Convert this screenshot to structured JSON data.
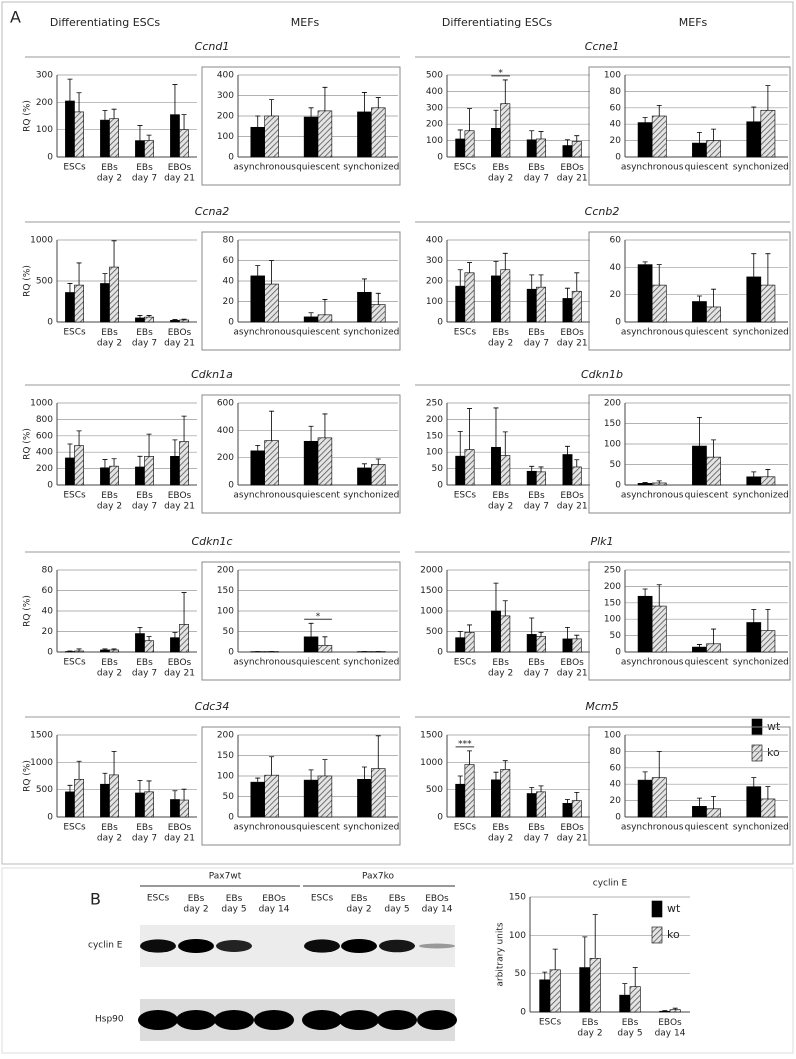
{
  "panel_a": {
    "label": "A",
    "column_headers": [
      "Differentiating ESCs",
      "MEFs",
      "Differentiating ESCs",
      "MEFs"
    ],
    "genes": [
      "Ccnd1",
      "Ccne1",
      "Ccna2",
      "Ccnb2",
      "Cdkn1a",
      "Cdkn1b",
      "Cdkn1c",
      "Plk1",
      "Cdc34",
      "Mcm5"
    ]
  },
  "panel_b": {
    "label": "B",
    "groups": [
      "Pax7wt",
      "Pax7ko"
    ],
    "lanes": [
      "ESCs",
      "EBs\nday 2",
      "EBs\nday 5",
      "EBOs\nday 14",
      "ESCs",
      "EBs\nday 2",
      "EBs\nday 5",
      "EBOs\nday 14"
    ],
    "rows": [
      "cyclin E",
      "Hsp90"
    ]
  },
  "chart_data": [
    {
      "type": "bar",
      "ylabel": "RQ (%)",
      "categories": [
        "ESCs",
        "EBs\nday 2",
        "EBs\nday 7",
        "EBOs\nday 21"
      ],
      "ylim": [
        0,
        300
      ],
      "yticks": [
        0,
        100,
        200,
        300
      ],
      "grid": true,
      "series": [
        {
          "color": "#000000",
          "values": [
            205,
            135,
            60,
            155
          ],
          "errors": [
            80,
            35,
            55,
            110
          ]
        },
        {
          "color": "#555555",
          "hatch": true,
          "values": [
            165,
            140,
            60,
            100
          ],
          "errors": [
            70,
            35,
            20,
            55
          ]
        }
      ]
    },
    {
      "type": "bar",
      "frame": true,
      "categories": [
        "asynchronous",
        "quiescent",
        "synchonized"
      ],
      "ylim": [
        0,
        400
      ],
      "yticks": [
        0,
        100,
        200,
        300,
        400
      ],
      "grid": true,
      "series": [
        {
          "color": "#000000",
          "values": [
            145,
            195,
            220
          ],
          "errors": [
            55,
            45,
            95
          ]
        },
        {
          "color": "#555555",
          "hatch": true,
          "values": [
            200,
            225,
            240
          ],
          "errors": [
            80,
            115,
            50
          ]
        }
      ]
    },
    {
      "type": "bar",
      "categories": [
        "ESCs",
        "EBs\nday 2",
        "EBs\nday 7",
        "EBOs\nday 21"
      ],
      "ylim": [
        0,
        500
      ],
      "yticks": [
        0,
        100,
        200,
        300,
        400,
        500
      ],
      "grid": true,
      "annotations": [
        {
          "text": "*",
          "category": 1
        }
      ],
      "series": [
        {
          "color": "#000000",
          "values": [
            110,
            175,
            105,
            70
          ],
          "errors": [
            55,
            110,
            55,
            35
          ]
        },
        {
          "color": "#555555",
          "hatch": true,
          "values": [
            160,
            325,
            110,
            95
          ],
          "errors": [
            135,
            145,
            45,
            35
          ]
        }
      ]
    },
    {
      "type": "bar",
      "frame": true,
      "categories": [
        "asynchronous",
        "quiescent",
        "synchonized"
      ],
      "ylim": [
        0,
        100
      ],
      "yticks": [
        0,
        20,
        40,
        60,
        80,
        100
      ],
      "grid": true,
      "series": [
        {
          "color": "#000000",
          "values": [
            42,
            17,
            43
          ],
          "errors": [
            6,
            13,
            18
          ]
        },
        {
          "color": "#555555",
          "hatch": true,
          "values": [
            50,
            20,
            57
          ],
          "errors": [
            13,
            14,
            30
          ]
        }
      ]
    },
    {
      "type": "bar",
      "ylabel": "RQ (%)",
      "categories": [
        "ESCs",
        "EBs\nday 2",
        "EBs\nday 7",
        "EBOs\nday 21"
      ],
      "ylim": [
        0,
        1000
      ],
      "yticks": [
        0,
        500,
        1000
      ],
      "grid": true,
      "series": [
        {
          "color": "#000000",
          "values": [
            360,
            470,
            50,
            20
          ],
          "errors": [
            110,
            120,
            30,
            10
          ]
        },
        {
          "color": "#555555",
          "hatch": true,
          "values": [
            450,
            670,
            60,
            25
          ],
          "errors": [
            270,
            320,
            20,
            10
          ]
        }
      ]
    },
    {
      "type": "bar",
      "frame": true,
      "categories": [
        "asynchronous",
        "quiescent",
        "synchonized"
      ],
      "ylim": [
        0,
        80
      ],
      "yticks": [
        0,
        20,
        40,
        60,
        80
      ],
      "grid": true,
      "series": [
        {
          "color": "#000000",
          "values": [
            45,
            5,
            29
          ],
          "errors": [
            10,
            4,
            13
          ]
        },
        {
          "color": "#555555",
          "hatch": true,
          "values": [
            37,
            7,
            17
          ],
          "errors": [
            23,
            15,
            11
          ]
        }
      ]
    },
    {
      "type": "bar",
      "categories": [
        "ESCs",
        "EBs\nday 2",
        "EBs\nday 7",
        "EBOs\nday 21"
      ],
      "ylim": [
        0,
        400
      ],
      "yticks": [
        0,
        100,
        200,
        300,
        400
      ],
      "grid": true,
      "series": [
        {
          "color": "#000000",
          "values": [
            175,
            225,
            160,
            115
          ],
          "errors": [
            80,
            70,
            70,
            50
          ]
        },
        {
          "color": "#555555",
          "hatch": true,
          "values": [
            240,
            255,
            170,
            150
          ],
          "errors": [
            50,
            80,
            60,
            90
          ]
        }
      ]
    },
    {
      "type": "bar",
      "frame": true,
      "categories": [
        "asynchronous",
        "quiescent",
        "synchonized"
      ],
      "ylim": [
        0,
        60
      ],
      "yticks": [
        0,
        20,
        40,
        60
      ],
      "grid": true,
      "series": [
        {
          "color": "#000000",
          "values": [
            42,
            15,
            33
          ],
          "errors": [
            2,
            4,
            17
          ]
        },
        {
          "color": "#555555",
          "hatch": true,
          "values": [
            27,
            11,
            27
          ],
          "errors": [
            15,
            13,
            23
          ]
        }
      ]
    },
    {
      "type": "bar",
      "ylabel": "RQ (%)",
      "categories": [
        "ESCs",
        "EBs\nday 2",
        "EBs\nday 7",
        "EBOs\nday 21"
      ],
      "ylim": [
        0,
        1000
      ],
      "yticks": [
        0,
        200,
        400,
        600,
        800,
        1000
      ],
      "grid": true,
      "series": [
        {
          "color": "#000000",
          "values": [
            330,
            210,
            220,
            350
          ],
          "errors": [
            170,
            100,
            130,
            200
          ]
        },
        {
          "color": "#555555",
          "hatch": true,
          "values": [
            480,
            230,
            350,
            530
          ],
          "errors": [
            180,
            90,
            270,
            310
          ]
        }
      ]
    },
    {
      "type": "bar",
      "frame": true,
      "categories": [
        "asynchronous",
        "quiescent",
        "synchonized"
      ],
      "ylim": [
        0,
        600
      ],
      "yticks": [
        0,
        200,
        400,
        600
      ],
      "grid": true,
      "series": [
        {
          "color": "#000000",
          "values": [
            250,
            320,
            125
          ],
          "errors": [
            40,
            110,
            30
          ]
        },
        {
          "color": "#555555",
          "hatch": true,
          "values": [
            325,
            345,
            150
          ],
          "errors": [
            215,
            175,
            40
          ]
        }
      ]
    },
    {
      "type": "bar",
      "categories": [
        "ESCs",
        "EBs\nday 2",
        "EBs\nday 7",
        "EBOs\nday 21"
      ],
      "ylim": [
        0,
        250
      ],
      "yticks": [
        0,
        50,
        100,
        150,
        200,
        250
      ],
      "grid": true,
      "series": [
        {
          "color": "#000000",
          "values": [
            88,
            115,
            42,
            93
          ],
          "errors": [
            75,
            120,
            15,
            25
          ]
        },
        {
          "color": "#555555",
          "hatch": true,
          "values": [
            108,
            90,
            40,
            55
          ],
          "errors": [
            125,
            72,
            15,
            22
          ]
        }
      ]
    },
    {
      "type": "bar",
      "frame": true,
      "categories": [
        "asynchronous",
        "quiescent",
        "synchonized"
      ],
      "ylim": [
        0,
        200
      ],
      "yticks": [
        0,
        50,
        100,
        150,
        200
      ],
      "grid": true,
      "series": [
        {
          "color": "#000000",
          "values": [
            4,
            95,
            20
          ],
          "errors": [
            2,
            70,
            12
          ]
        },
        {
          "color": "#555555",
          "hatch": true,
          "values": [
            5,
            68,
            20
          ],
          "errors": [
            5,
            42,
            18
          ]
        }
      ]
    },
    {
      "type": "bar",
      "ylabel": "RQ (%)",
      "categories": [
        "ESCs",
        "EBs\nday 2",
        "EBs\nday 7",
        "EBOs\nday 21"
      ],
      "ylim": [
        0,
        80
      ],
      "yticks": [
        0,
        20,
        40,
        60,
        80
      ],
      "grid": true,
      "series": [
        {
          "color": "#000000",
          "values": [
            0.5,
            2,
            18,
            14
          ],
          "errors": [
            0.5,
            1,
            6,
            5
          ]
        },
        {
          "color": "#555555",
          "hatch": true,
          "values": [
            1,
            2,
            11,
            27
          ],
          "errors": [
            2,
            1,
            4,
            31
          ]
        }
      ]
    },
    {
      "type": "bar",
      "frame": true,
      "categories": [
        "asynchronous",
        "quiescent",
        "synchonized"
      ],
      "ylim": [
        0,
        200
      ],
      "yticks": [
        0,
        50,
        100,
        150,
        200
      ],
      "grid": true,
      "annotations": [
        {
          "text": "*",
          "category": 1
        }
      ],
      "series": [
        {
          "color": "#000000",
          "values": [
            1,
            37,
            1
          ],
          "errors": [
            0,
            33,
            0
          ]
        },
        {
          "color": "#555555",
          "hatch": true,
          "values": [
            1,
            16,
            1
          ],
          "errors": [
            0,
            21,
            0
          ]
        }
      ]
    },
    {
      "type": "bar",
      "categories": [
        "ESCs",
        "EBs\nday 2",
        "EBs\nday 7",
        "EBOs\nday 21"
      ],
      "ylim": [
        0,
        2000
      ],
      "yticks": [
        0,
        500,
        1000,
        1500,
        2000
      ],
      "grid": true,
      "series": [
        {
          "color": "#000000",
          "values": [
            350,
            1000,
            430,
            320
          ],
          "errors": [
            150,
            680,
            400,
            280
          ]
        },
        {
          "color": "#555555",
          "hatch": true,
          "values": [
            480,
            880,
            380,
            320
          ],
          "errors": [
            180,
            370,
            100,
            90
          ]
        }
      ]
    },
    {
      "type": "bar",
      "frame": true,
      "categories": [
        "asynchronous",
        "quiescent",
        "synchonized"
      ],
      "ylim": [
        0,
        250
      ],
      "yticks": [
        0,
        50,
        100,
        150,
        200,
        250
      ],
      "grid": true,
      "series": [
        {
          "color": "#000000",
          "values": [
            170,
            15,
            90
          ],
          "errors": [
            22,
            8,
            40
          ]
        },
        {
          "color": "#555555",
          "hatch": true,
          "values": [
            140,
            25,
            65
          ],
          "errors": [
            65,
            45,
            65
          ]
        }
      ]
    },
    {
      "type": "bar",
      "ylabel": "RQ (%)",
      "categories": [
        "ESCs",
        "EBs\nday 2",
        "EBs\nday 7",
        "EBOs\nday 21"
      ],
      "ylim": [
        0,
        1500
      ],
      "yticks": [
        0,
        500,
        1000,
        1500
      ],
      "grid": true,
      "series": [
        {
          "color": "#000000",
          "values": [
            460,
            600,
            440,
            320
          ],
          "errors": [
            120,
            200,
            230,
            160
          ]
        },
        {
          "color": "#555555",
          "hatch": true,
          "values": [
            690,
            770,
            460,
            310
          ],
          "errors": [
            330,
            430,
            200,
            200
          ]
        }
      ]
    },
    {
      "type": "bar",
      "frame": true,
      "categories": [
        "asynchronous",
        "quiescent",
        "synchonized"
      ],
      "ylim": [
        0,
        200
      ],
      "yticks": [
        0,
        50,
        100,
        150,
        200
      ],
      "grid": true,
      "series": [
        {
          "color": "#000000",
          "values": [
            85,
            90,
            92
          ],
          "errors": [
            10,
            25,
            30
          ]
        },
        {
          "color": "#555555",
          "hatch": true,
          "values": [
            102,
            100,
            118
          ],
          "errors": [
            45,
            40,
            80
          ]
        }
      ]
    },
    {
      "type": "bar",
      "categories": [
        "ESCs",
        "EBs\nday 2",
        "EBs\nday 7",
        "EBOs\nday 21"
      ],
      "ylim": [
        0,
        1500
      ],
      "yticks": [
        0,
        500,
        1000,
        1500
      ],
      "grid": true,
      "annotations": [
        {
          "text": "***",
          "category": 0
        }
      ],
      "legend": "far right",
      "series": [
        {
          "name": "wt",
          "color": "#000000",
          "values": [
            600,
            680,
            430,
            250
          ],
          "errors": [
            150,
            140,
            110,
            70
          ]
        },
        {
          "name": "ko",
          "color": "#555555",
          "hatch": true,
          "values": [
            960,
            870,
            460,
            300
          ],
          "errors": [
            250,
            160,
            110,
            150
          ]
        }
      ]
    },
    {
      "type": "bar",
      "frame": true,
      "categories": [
        "asynchronous",
        "quiescent",
        "synchonized"
      ],
      "ylim": [
        0,
        100
      ],
      "yticks": [
        0,
        20,
        40,
        60,
        80,
        100
      ],
      "grid": true,
      "series": [
        {
          "color": "#000000",
          "values": [
            45,
            13,
            37
          ],
          "errors": [
            10,
            10,
            11
          ]
        },
        {
          "color": "#555555",
          "hatch": true,
          "values": [
            48,
            10,
            22
          ],
          "errors": [
            32,
            15,
            15
          ]
        }
      ]
    },
    {
      "type": "bar",
      "title": "cyclin E",
      "ylabel": "arbitrary units",
      "categories": [
        "ESCs",
        "EBs\nday 2",
        "EBs\nday 5",
        "EBOs\nday 14"
      ],
      "ylim": [
        0,
        150
      ],
      "yticks": [
        0,
        50,
        100,
        150
      ],
      "grid": true,
      "legend": "upper right",
      "series": [
        {
          "name": "wt",
          "color": "#000000",
          "values": [
            42,
            58,
            22,
            1
          ],
          "errors": [
            10,
            40,
            15,
            1
          ]
        },
        {
          "name": "ko",
          "color": "#555555",
          "hatch": true,
          "values": [
            55,
            70,
            33,
            3
          ],
          "errors": [
            27,
            57,
            25,
            2
          ]
        }
      ]
    }
  ]
}
